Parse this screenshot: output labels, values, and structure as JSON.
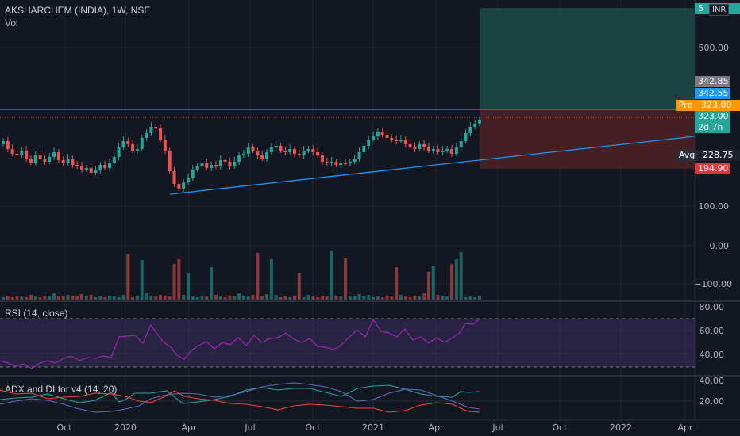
{
  "header": {
    "symbol_title": "AKSHARCHEM (INDIA), 1W, NSE",
    "volume_label": "Vol",
    "currency_button": "INR",
    "currency_price_stub": "5"
  },
  "price_scale": {
    "ticks": [
      "500.00",
      "100.00",
      "0.00",
      "−100.00"
    ],
    "badges": {
      "high_a": "342.85",
      "high_b": "342.55",
      "pre_label": "Pre",
      "pre_value": "323.00",
      "last_price": "323.00",
      "countdown": "2d 7h",
      "avg_label": "Avg",
      "avg_value": "228.75",
      "low_value": "194.90"
    }
  },
  "rsi": {
    "title": "RSI (14, close)",
    "ticks": [
      "80.00",
      "60.00",
      "40.00"
    ]
  },
  "adx": {
    "title": "ADX and DI for v4 (14, 20)",
    "ticks": [
      "40.00",
      "20.00"
    ]
  },
  "time_axis": [
    "Oct",
    "2020",
    "Apr",
    "Jul",
    "Oct",
    "2021",
    "Apr",
    "Jul",
    "Oct",
    "2022",
    "Apr"
  ],
  "colors": {
    "bull": "#26a69a",
    "bear": "#ef5350",
    "trendline": "#2196f3",
    "rsi_line": "#9c27b0",
    "pre_badge": "#ff9800",
    "low_badge": "#e0343e",
    "avg_badge": "#1e222d"
  }
}
